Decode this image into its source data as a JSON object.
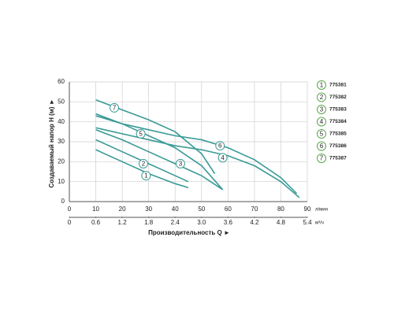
{
  "chart_data": {
    "type": "line",
    "y_label": "Создаваемый напор H (м) ►",
    "x_label": "Производительность Q ►",
    "x_unit": "л/мин",
    "x2_unit": "м³/ч",
    "xlim": [
      0,
      90
    ],
    "xticks": [
      0,
      10,
      20,
      30,
      40,
      50,
      60,
      70,
      80,
      90
    ],
    "x2lim": [
      0,
      5.4
    ],
    "x2ticks": [
      0,
      0.6,
      1.2,
      1.8,
      2.4,
      {
        "value": 3,
        "label": "3.0"
      },
      3.6,
      4.2,
      4.8,
      5.4
    ],
    "ylim": [
      0,
      60
    ],
    "yticks": [
      0,
      10,
      20,
      30,
      40,
      50,
      60
    ],
    "grid": true,
    "series": [
      {
        "marker": "1",
        "name": "775381",
        "color": "#3a9a96",
        "x": [
          10,
          20,
          30,
          40,
          45
        ],
        "values": [
          26,
          20,
          14,
          9,
          7
        ]
      },
      {
        "marker": "2",
        "name": "775382",
        "color": "#3a9a96",
        "x": [
          10,
          20,
          30,
          40,
          45
        ],
        "values": [
          31,
          25,
          19,
          13,
          10
        ]
      },
      {
        "marker": "3",
        "name": "775383",
        "color": "#3a9a96",
        "x": [
          10,
          20,
          30,
          40,
          50,
          58
        ],
        "values": [
          36,
          31,
          25,
          19,
          13,
          6
        ]
      },
      {
        "marker": "4",
        "name": "775384",
        "color": "#3a9a96",
        "x": [
          10,
          20,
          30,
          40,
          50,
          60,
          70,
          80,
          87
        ],
        "values": [
          37,
          34,
          31,
          28,
          26,
          23,
          18,
          10,
          2
        ]
      },
      {
        "marker": "5",
        "name": "775385",
        "color": "#3a9a96",
        "x": [
          10,
          20,
          30,
          40,
          50,
          58
        ],
        "values": [
          44,
          39,
          33,
          27,
          18,
          6
        ]
      },
      {
        "marker": "6",
        "name": "775386",
        "color": "#3a9a96",
        "x": [
          10,
          20,
          30,
          40,
          50,
          60,
          70,
          80,
          86
        ],
        "values": [
          43,
          39,
          36,
          33,
          31,
          27,
          21,
          12,
          4
        ]
      },
      {
        "marker": "7",
        "name": "775387",
        "color": "#3a9a96",
        "x": [
          10,
          20,
          30,
          40,
          50,
          55
        ],
        "values": [
          51,
          46,
          41,
          35,
          24,
          14
        ]
      }
    ]
  }
}
